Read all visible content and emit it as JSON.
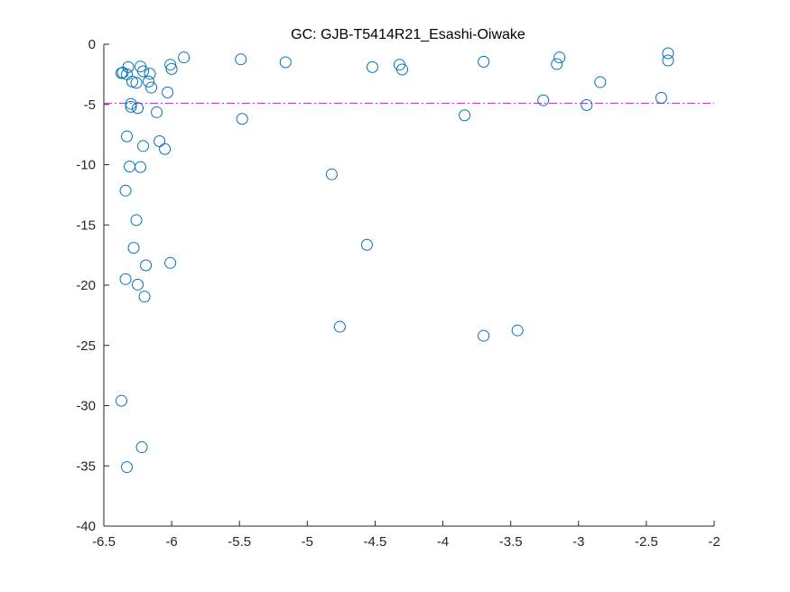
{
  "chart_data": {
    "type": "scatter",
    "title": "GC: GJB-T5414R21_Esashi-Oiwake",
    "xlabel": "",
    "ylabel": "",
    "xlim": [
      -6.5,
      -2
    ],
    "ylim": [
      -40,
      0
    ],
    "x_ticks": [
      -6.5,
      -6,
      -5.5,
      -5,
      -4.5,
      -4,
      -3.5,
      -3,
      -2.5,
      -2
    ],
    "x_tick_labels": [
      "-6.5",
      "-6",
      "-5.5",
      "-5",
      "-4.5",
      "-4",
      "-3.5",
      "-3",
      "-2.5",
      "-2"
    ],
    "y_ticks": [
      0,
      -5,
      -10,
      -15,
      -20,
      -25,
      -30,
      -35,
      -40
    ],
    "y_tick_labels": [
      "0",
      "-5",
      "-10",
      "-15",
      "-20",
      "-25",
      "-30",
      "-35",
      "-40"
    ],
    "grid": false,
    "marker_color": "#0072BD",
    "threshold_line": {
      "y": -4.9,
      "color": "#FF00FF",
      "style": "dash-dot"
    },
    "points": [
      {
        "x": -6.37,
        "y": -2.4
      },
      {
        "x": -6.36,
        "y": -2.35
      },
      {
        "x": -6.33,
        "y": -2.5
      },
      {
        "x": -6.32,
        "y": -1.9
      },
      {
        "x": -6.29,
        "y": -3.1
      },
      {
        "x": -6.26,
        "y": -3.2
      },
      {
        "x": -6.23,
        "y": -1.85
      },
      {
        "x": -6.21,
        "y": -2.25
      },
      {
        "x": -6.17,
        "y": -3.1
      },
      {
        "x": -6.16,
        "y": -2.45
      },
      {
        "x": -6.15,
        "y": -3.6
      },
      {
        "x": -6.01,
        "y": -1.7
      },
      {
        "x": -6.0,
        "y": -2.05
      },
      {
        "x": -5.91,
        "y": -1.1
      },
      {
        "x": -6.03,
        "y": -4.0
      },
      {
        "x": -6.3,
        "y": -4.95
      },
      {
        "x": -6.3,
        "y": -5.2
      },
      {
        "x": -6.25,
        "y": -5.3
      },
      {
        "x": -6.11,
        "y": -5.65
      },
      {
        "x": -6.33,
        "y": -7.65
      },
      {
        "x": -6.21,
        "y": -8.45
      },
      {
        "x": -6.09,
        "y": -8.05
      },
      {
        "x": -6.05,
        "y": -8.7
      },
      {
        "x": -6.31,
        "y": -10.15
      },
      {
        "x": -6.23,
        "y": -10.2
      },
      {
        "x": -6.34,
        "y": -12.15
      },
      {
        "x": -6.26,
        "y": -14.6
      },
      {
        "x": -6.28,
        "y": -16.9
      },
      {
        "x": -6.19,
        "y": -18.35
      },
      {
        "x": -6.01,
        "y": -18.15
      },
      {
        "x": -6.34,
        "y": -19.5
      },
      {
        "x": -6.25,
        "y": -19.95
      },
      {
        "x": -6.2,
        "y": -20.95
      },
      {
        "x": -6.37,
        "y": -29.6
      },
      {
        "x": -6.22,
        "y": -33.45
      },
      {
        "x": -6.33,
        "y": -35.1
      },
      {
        "x": -5.49,
        "y": -1.25
      },
      {
        "x": -5.48,
        "y": -6.2
      },
      {
        "x": -5.16,
        "y": -1.5
      },
      {
        "x": -4.82,
        "y": -10.8
      },
      {
        "x": -4.76,
        "y": -23.45
      },
      {
        "x": -4.56,
        "y": -16.65
      },
      {
        "x": -4.52,
        "y": -1.9
      },
      {
        "x": -4.32,
        "y": -1.7
      },
      {
        "x": -4.3,
        "y": -2.1
      },
      {
        "x": -3.84,
        "y": -5.9
      },
      {
        "x": -3.7,
        "y": -1.45
      },
      {
        "x": -3.7,
        "y": -24.2
      },
      {
        "x": -3.45,
        "y": -23.75
      },
      {
        "x": -3.26,
        "y": -4.65
      },
      {
        "x": -3.16,
        "y": -1.65
      },
      {
        "x": -3.14,
        "y": -1.1
      },
      {
        "x": -2.94,
        "y": -5.05
      },
      {
        "x": -2.84,
        "y": -3.15
      },
      {
        "x": -2.39,
        "y": -4.45
      },
      {
        "x": -2.34,
        "y": -0.75
      },
      {
        "x": -2.34,
        "y": -1.35
      }
    ]
  }
}
